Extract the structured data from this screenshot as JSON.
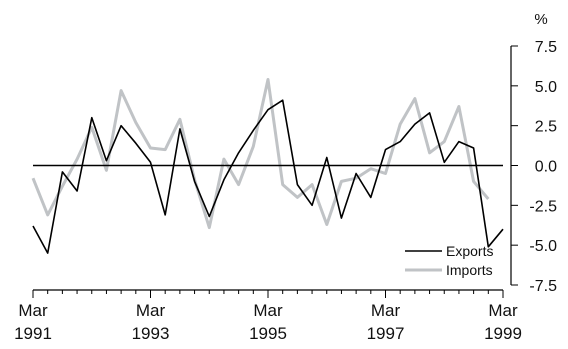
{
  "chart_data": {
    "type": "line",
    "title": "",
    "xlabel": "",
    "ylabel": "",
    "yunit": "%",
    "ylim": [
      -7.5,
      7.5
    ],
    "yticks": [
      7.5,
      5.0,
      2.5,
      0.0,
      -2.5,
      -5.0,
      -7.5
    ],
    "ytick_labels": [
      "7.5",
      "5.0",
      "2.5",
      "0.0",
      "-2.5",
      "-5.0",
      "-7.5"
    ],
    "y_axis_side": "right",
    "xlim": [
      1991.0,
      1999.0
    ],
    "xticks": [
      {
        "x": 1991.0,
        "month": "Mar",
        "year": "1991"
      },
      {
        "x": 1993.0,
        "month": "Mar",
        "year": "1993"
      },
      {
        "x": 1995.0,
        "month": "Mar",
        "year": "1995"
      },
      {
        "x": 1997.0,
        "month": "Mar",
        "year": "1997"
      },
      {
        "x": 1999.0,
        "month": "Mar",
        "year": "1999"
      }
    ],
    "zero_line": true,
    "grid": false,
    "legend_position": "bottom-right",
    "x": [
      1991.0,
      1991.25,
      1991.5,
      1991.75,
      1992.0,
      1992.25,
      1992.5,
      1992.75,
      1993.0,
      1993.25,
      1993.5,
      1993.75,
      1994.0,
      1994.25,
      1994.5,
      1994.75,
      1995.0,
      1995.25,
      1995.5,
      1995.75,
      1996.0,
      1996.25,
      1996.5,
      1996.75,
      1997.0,
      1997.25,
      1997.5,
      1997.75,
      1998.0,
      1998.25,
      1998.5,
      1998.75,
      1999.0
    ],
    "series": [
      {
        "name": "Exports",
        "color": "#000000",
        "values": [
          -3.8,
          -5.5,
          -0.4,
          -1.6,
          3.0,
          0.3,
          2.5,
          1.4,
          0.2,
          -3.1,
          2.3,
          -1.0,
          -3.2,
          -0.9,
          0.8,
          2.2,
          3.5,
          4.1,
          -1.2,
          -2.5,
          0.5,
          -3.3,
          -0.5,
          -2.0,
          1.0,
          1.5,
          2.6,
          3.3,
          0.2,
          1.5,
          1.1,
          -5.1,
          -4.0
        ]
      },
      {
        "name": "Imports",
        "color": "#c0c3c6",
        "values": [
          -0.8,
          -3.1,
          -1.3,
          0.4,
          2.4,
          -0.3,
          4.7,
          2.7,
          1.1,
          1.0,
          2.9,
          -0.9,
          -3.9,
          0.4,
          -1.2,
          1.2,
          5.4,
          -1.2,
          -2.0,
          -1.2,
          -3.7,
          -1.0,
          -0.8,
          -0.2,
          -0.5,
          2.6,
          4.2,
          0.8,
          1.5,
          3.7,
          -1.0,
          -2.1,
          null
        ]
      }
    ]
  }
}
